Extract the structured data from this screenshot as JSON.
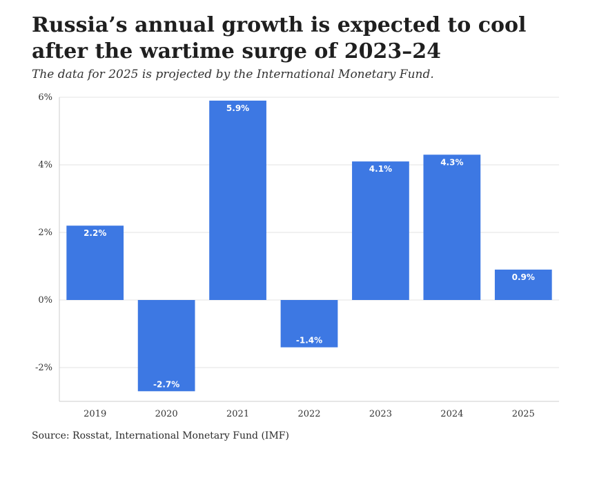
{
  "title": "Russia’s annual growth is expected to cool after the wartime surge of 2023–24",
  "subtitle": "The data for 2025 is projected by the International Monetary Fund.",
  "source": "Source: Rosstat, International Monetary Fund (IMF)",
  "colors": {
    "bar": "#3d78e3",
    "grid": "#e3e3e3",
    "axis": "#cccccc"
  },
  "chart_data": {
    "type": "bar",
    "categories": [
      "2019",
      "2020",
      "2021",
      "2022",
      "2023",
      "2024",
      "2025"
    ],
    "values": [
      2.2,
      -2.7,
      5.9,
      -1.4,
      4.1,
      4.3,
      0.9
    ],
    "data_labels": [
      "2.2%",
      "-2.7%",
      "5.9%",
      "-1.4%",
      "4.1%",
      "4.3%",
      "0.9%"
    ],
    "y_ticks": [
      6,
      4,
      2,
      0,
      -2
    ],
    "y_tick_labels": [
      "6%",
      "4%",
      "2%",
      "0%",
      "-2%"
    ],
    "ylim": [
      -3,
      6
    ],
    "xlabel": "",
    "ylabel": "",
    "grid": true
  }
}
